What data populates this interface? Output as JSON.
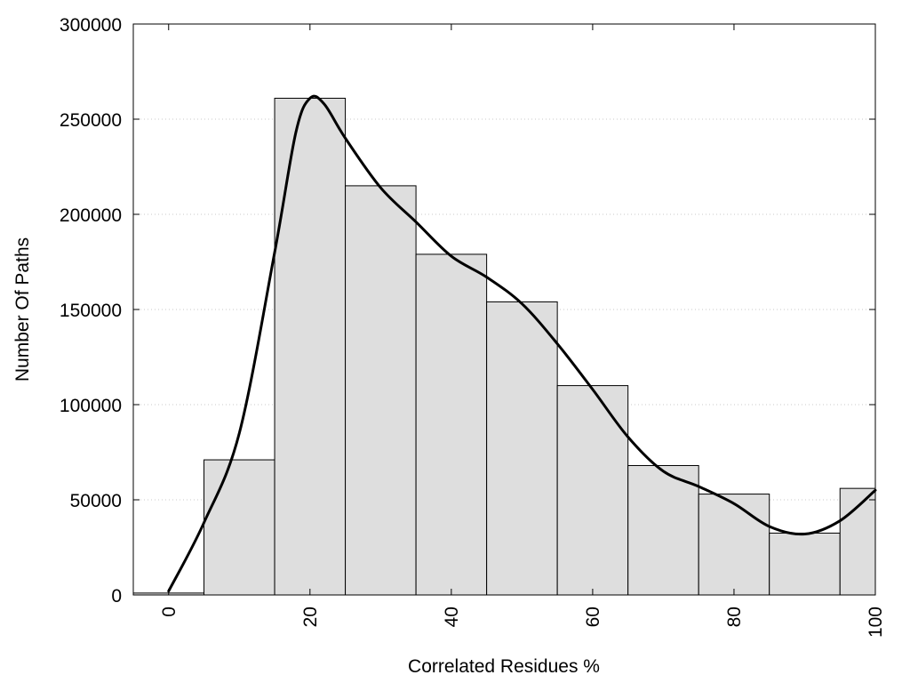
{
  "colors": {
    "bar_fill": "#dedede",
    "bar_stroke": "#000000",
    "curve": "#000000",
    "grid": "#c8c8c8",
    "frame": "#000000"
  },
  "chart_data": {
    "type": "bar",
    "title": "",
    "xlabel": "Correlated Residues %",
    "ylabel": "Number Of Paths",
    "xlim": [
      -10,
      100
    ],
    "ylim": [
      0,
      300000
    ],
    "grid": "horizontal dotted",
    "legend": "none",
    "bin_width": 10,
    "bins": [
      {
        "center": 0,
        "value": 1000
      },
      {
        "center": 10,
        "value": 71000
      },
      {
        "center": 20,
        "value": 261000
      },
      {
        "center": 30,
        "value": 215000
      },
      {
        "center": 40,
        "value": 179000
      },
      {
        "center": 50,
        "value": 154000
      },
      {
        "center": 60,
        "value": 110000
      },
      {
        "center": 70,
        "value": 68000
      },
      {
        "center": 80,
        "value": 53000
      },
      {
        "center": 90,
        "value": 32500
      },
      {
        "center": 100,
        "value": 56000
      }
    ],
    "y_ticks": [
      0,
      50000,
      100000,
      150000,
      200000,
      250000,
      300000
    ],
    "x_ticks": [
      0,
      20,
      40,
      60,
      80,
      100
    ],
    "curve": {
      "x": [
        0,
        5,
        10,
        15,
        18,
        20,
        22,
        25,
        30,
        35,
        40,
        45,
        50,
        55,
        60,
        65,
        70,
        75,
        80,
        85,
        90,
        95,
        100
      ],
      "y": [
        2000,
        38000,
        85000,
        180000,
        243000,
        261000,
        258000,
        240000,
        214000,
        196000,
        178000,
        167000,
        153000,
        132000,
        108000,
        83000,
        65000,
        57000,
        48000,
        36000,
        32000,
        39000,
        55000
      ]
    }
  }
}
